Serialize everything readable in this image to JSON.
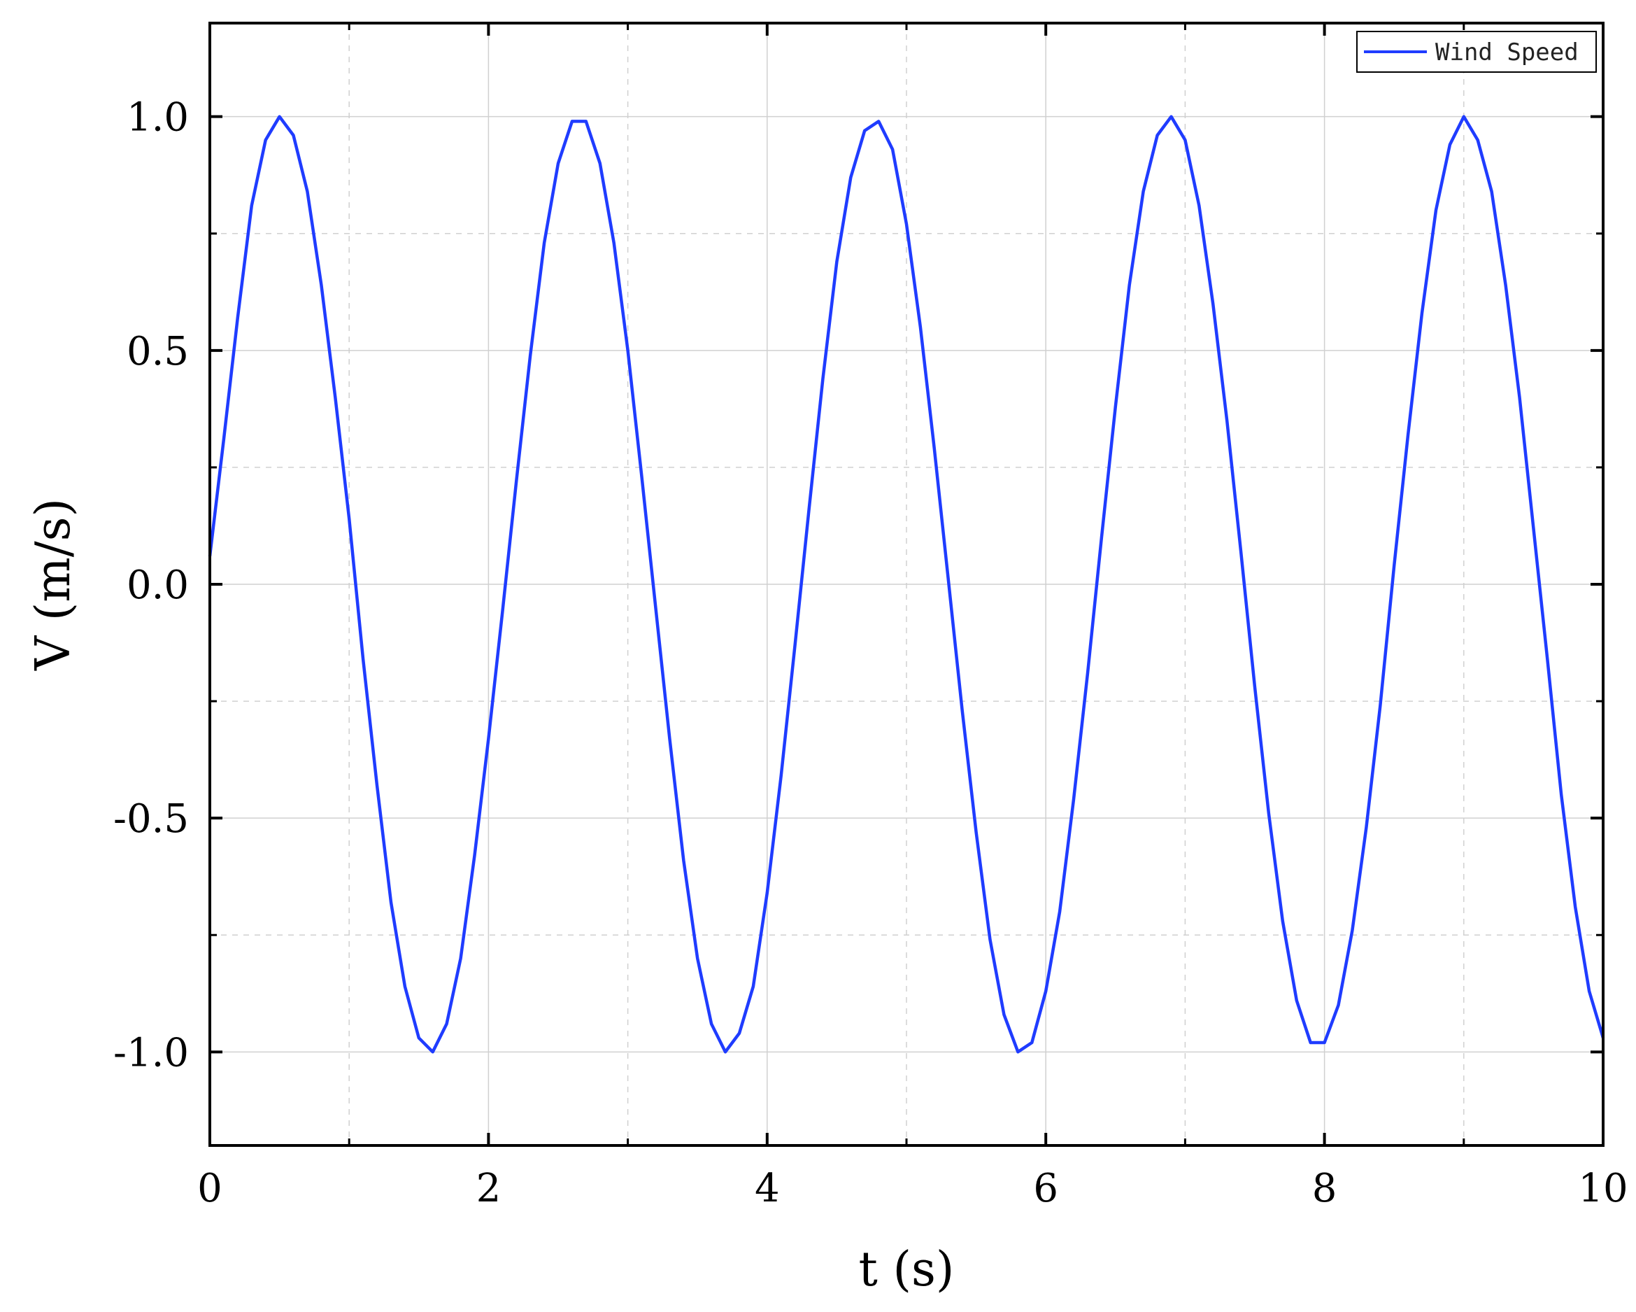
{
  "chart_data": {
    "type": "line",
    "title": "",
    "xlabel": "t (s)",
    "ylabel": "V (m/s)",
    "xlim": [
      0,
      10
    ],
    "ylim": [
      -1.2,
      1.2
    ],
    "x_ticks": [
      0,
      2,
      4,
      6,
      8,
      10
    ],
    "x_tick_labels": [
      "0",
      "2",
      "4",
      "6",
      "8",
      "10"
    ],
    "y_ticks": [
      -1.0,
      -0.5,
      0.0,
      0.5,
      1.0
    ],
    "y_tick_labels": [
      "-1.0",
      "-0.5",
      "0.0",
      "0.5",
      "1.0"
    ],
    "grid": true,
    "legend_position": "top-right",
    "series": [
      {
        "name": "Wind Speed",
        "color": "#1f3cff",
        "x": [
          0.0,
          0.1,
          0.2,
          0.3,
          0.4,
          0.5,
          0.6,
          0.7,
          0.8,
          0.9,
          1.0,
          1.1,
          1.2,
          1.3,
          1.4,
          1.5,
          1.6,
          1.7,
          1.8,
          1.9,
          2.0,
          2.1,
          2.2,
          2.3,
          2.4,
          2.5,
          2.6,
          2.7,
          2.8,
          2.9,
          3.0,
          3.1,
          3.2,
          3.3,
          3.4,
          3.5,
          3.6,
          3.7,
          3.8,
          3.9,
          4.0,
          4.1,
          4.2,
          4.3,
          4.4,
          4.5,
          4.6,
          4.7,
          4.8,
          4.9,
          5.0,
          5.1,
          5.2,
          5.3,
          5.4,
          5.5,
          5.6,
          5.7,
          5.8,
          5.9,
          6.0,
          6.1,
          6.2,
          6.3,
          6.4,
          6.5,
          6.6,
          6.7,
          6.8,
          6.9,
          7.0,
          7.1,
          7.2,
          7.3,
          7.4,
          7.5,
          7.6,
          7.7,
          7.8,
          7.9,
          8.0,
          8.1,
          8.2,
          8.3,
          8.4,
          8.5,
          8.6,
          8.7,
          8.8,
          8.9,
          9.0,
          9.1,
          9.2,
          9.3,
          9.4,
          9.5,
          9.6,
          9.7,
          9.8,
          9.9,
          10.0
        ],
        "y": [
          0.06,
          0.31,
          0.57,
          0.81,
          0.95,
          1.0,
          0.96,
          0.84,
          0.64,
          0.4,
          0.14,
          -0.16,
          -0.43,
          -0.68,
          -0.86,
          -0.97,
          -1.0,
          -0.94,
          -0.8,
          -0.58,
          -0.33,
          -0.06,
          0.22,
          0.49,
          0.73,
          0.9,
          0.99,
          0.99,
          0.9,
          0.73,
          0.5,
          0.23,
          -0.05,
          -0.33,
          -0.59,
          -0.8,
          -0.94,
          -1.0,
          -0.96,
          -0.86,
          -0.66,
          -0.41,
          -0.13,
          0.16,
          0.44,
          0.69,
          0.87,
          0.97,
          0.99,
          0.93,
          0.77,
          0.55,
          0.29,
          0.01,
          -0.27,
          -0.53,
          -0.76,
          -0.92,
          -1.0,
          -0.98,
          -0.87,
          -0.7,
          -0.46,
          -0.19,
          0.1,
          0.38,
          0.64,
          0.84,
          0.96,
          1.0,
          0.95,
          0.81,
          0.6,
          0.35,
          0.07,
          -0.22,
          -0.49,
          -0.72,
          -0.89,
          -0.98,
          -0.98,
          -0.9,
          -0.74,
          -0.52,
          -0.26,
          0.04,
          0.32,
          0.58,
          0.8,
          0.94,
          1.0,
          0.95,
          0.84,
          0.64,
          0.4,
          0.12,
          -0.16,
          -0.45,
          -0.69,
          -0.87,
          -0.97
        ]
      }
    ]
  }
}
